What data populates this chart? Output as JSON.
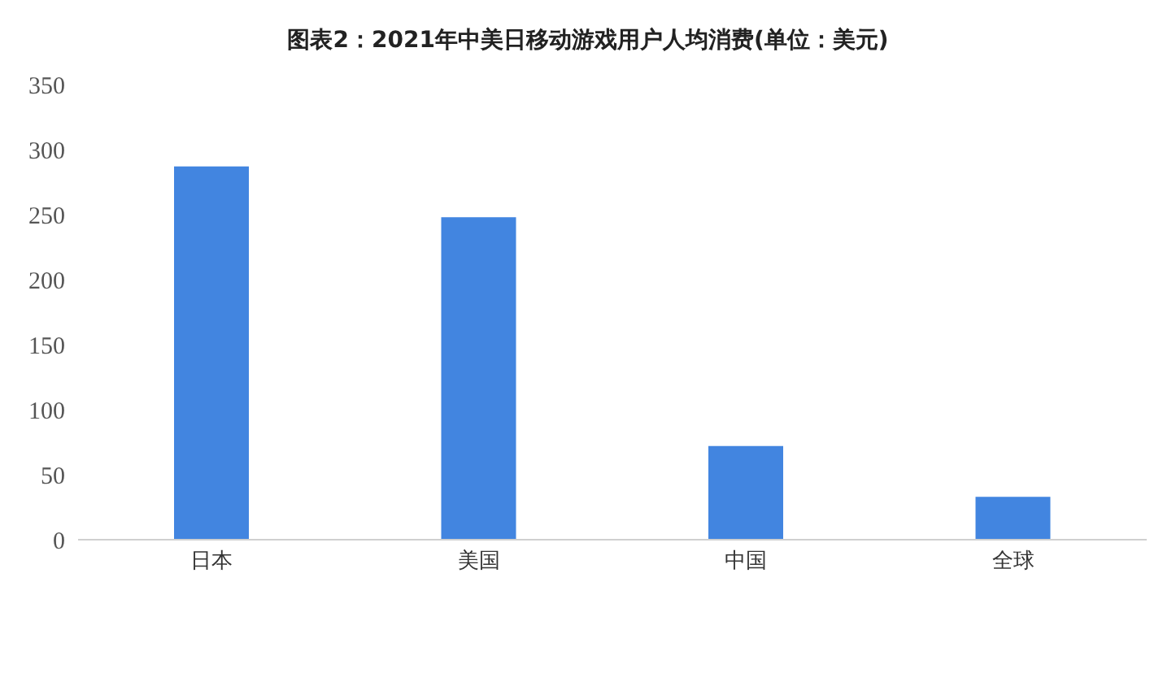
{
  "chart_data": {
    "type": "bar",
    "title": "图表2：2021年中美日移动游戏用户人均消费(单位：美元)",
    "categories": [
      "日本",
      "美国",
      "中国",
      "全球"
    ],
    "values": [
      287,
      248,
      72,
      33
    ],
    "color": "#4285e0",
    "ylim": [
      0,
      350
    ],
    "yticks": [
      0,
      50,
      100,
      150,
      200,
      250,
      300,
      350
    ],
    "grid": false
  }
}
